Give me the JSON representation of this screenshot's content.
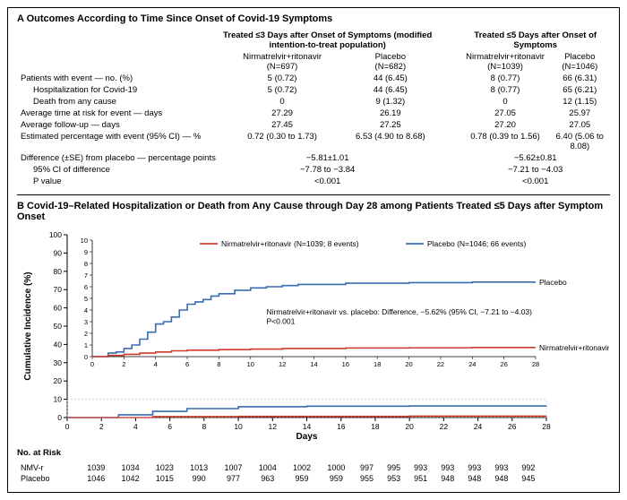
{
  "panelA": {
    "title": "A  Outcomes According to Time Since Onset of Covid-19 Symptoms",
    "group3": {
      "header": "Treated ≤3 Days after Onset of Symptoms (modified intention-to-treat population)",
      "nmvHead": "Nirmatrelvir+ritonavir",
      "nmvN": "(N=697)",
      "pboHead": "Placebo",
      "pboN": "(N=682)"
    },
    "group5": {
      "header": "Treated ≤5 Days after Onset of Symptoms",
      "nmvHead": "Nirmatrelvir+ritonavir",
      "nmvN": "(N=1039)",
      "pboHead": "Placebo",
      "pboN": "(N=1046)"
    },
    "rows": [
      {
        "label": "Patients with event — no. (%)",
        "a": "5 (0.72)",
        "b": "44 (6.45)",
        "c": "8 (0.77)",
        "d": "66 (6.31)"
      },
      {
        "label": "  Hospitalization for Covid-19",
        "a": "5 (0.72)",
        "b": "44 (6.45)",
        "c": "8 (0.77)",
        "d": "65 (6.21)"
      },
      {
        "label": "  Death from any cause",
        "a": "0",
        "b": "9 (1.32)",
        "c": "0",
        "d": "12 (1.15)"
      },
      {
        "label": "Average time at risk for event — days",
        "a": "27.29",
        "b": "26.19",
        "c": "27.05",
        "d": "25.97"
      },
      {
        "label": "Average follow-up — days",
        "a": "27.45",
        "b": "27.25",
        "c": "27.20",
        "d": "27.05"
      },
      {
        "label": "Estimated percentage with event (95% CI) — %",
        "a": "0.72 (0.30 to 1.73)",
        "b": "6.53 (4.90 to 8.68)",
        "c": "0.78 (0.39 to 1.56)",
        "d": "6.40 (5.06 to 8.08)"
      },
      {
        "label": "Difference (±SE) from placebo — percentage points",
        "a": "",
        "b": "",
        "c": "",
        "d": "",
        "diff3": "−5.81±1.01",
        "diff5": "−5.62±0.81"
      },
      {
        "label": "  95% CI of difference",
        "a": "",
        "b": "",
        "c": "",
        "d": "",
        "diff3": "−7.78 to −3.84",
        "diff5": "−7.21 to −4.03"
      },
      {
        "label": "  P value",
        "a": "",
        "b": "",
        "c": "",
        "d": "",
        "diff3": "<0.001",
        "diff5": "<0.001"
      }
    ]
  },
  "panelB": {
    "title": "B  Covid-19–Related Hospitalization or Death from Any Cause through Day 28 among Patients Treated ≤5 Days after Symptom Onset",
    "type": "kaplan-meier step",
    "ylabel": "Cumulative Incidence (%)",
    "xlabel": "Days",
    "xlim": [
      0,
      28
    ],
    "xticks": [
      0,
      2,
      4,
      6,
      8,
      10,
      12,
      14,
      16,
      18,
      20,
      22,
      24,
      26,
      28
    ],
    "ylim_outer": [
      0,
      100
    ],
    "yticks_outer": [
      0,
      10,
      20,
      30,
      40,
      50,
      60,
      70,
      80,
      90,
      100
    ],
    "ylim_inset": [
      0,
      10
    ],
    "yticks_inset": [
      0,
      1,
      2,
      3,
      4,
      5,
      6,
      7,
      8,
      9,
      10
    ],
    "colors": {
      "nmv": "#d13b2e",
      "pbo": "#3a6db0",
      "axis": "#000000",
      "grid": "#bfbfbf"
    },
    "line_width": 1.6,
    "legend": {
      "nmv": "Nirmatrelvir+ritonavir (N=1039; 8 events)",
      "pbo": "Placebo (N=1046; 66 events)"
    },
    "annotation": {
      "line1": "Nirmatrelvir+ritonavir vs. placebo: Difference, −5.62% (95% CI, −7.21 to −4.03)",
      "line2": "P<0.001"
    },
    "end_labels": {
      "pbo": "Placebo",
      "nmv": "Nirmatrelvir+ritonavir"
    },
    "series_inset": {
      "pbo": [
        [
          0,
          0
        ],
        [
          1,
          0.3
        ],
        [
          1.5,
          0.4
        ],
        [
          2,
          0.7
        ],
        [
          2.5,
          1.0
        ],
        [
          3,
          1.5
        ],
        [
          3.5,
          2.1
        ],
        [
          4,
          2.8
        ],
        [
          4.5,
          3.0
        ],
        [
          5,
          3.4
        ],
        [
          5.5,
          4.0
        ],
        [
          6,
          4.5
        ],
        [
          6.5,
          4.7
        ],
        [
          7,
          4.9
        ],
        [
          7.5,
          5.2
        ],
        [
          8,
          5.4
        ],
        [
          9,
          5.7
        ],
        [
          10,
          5.9
        ],
        [
          11,
          6.0
        ],
        [
          12,
          6.1
        ],
        [
          13,
          6.2
        ],
        [
          14,
          6.2
        ],
        [
          16,
          6.3
        ],
        [
          20,
          6.35
        ],
        [
          24,
          6.4
        ],
        [
          28,
          6.4
        ]
      ],
      "nmv": [
        [
          0,
          0
        ],
        [
          1,
          0.1
        ],
        [
          2,
          0.2
        ],
        [
          3,
          0.3
        ],
        [
          4,
          0.4
        ],
        [
          5,
          0.5
        ],
        [
          6,
          0.55
        ],
        [
          8,
          0.6
        ],
        [
          10,
          0.65
        ],
        [
          12,
          0.7
        ],
        [
          16,
          0.74
        ],
        [
          20,
          0.76
        ],
        [
          24,
          0.78
        ],
        [
          28,
          0.78
        ]
      ]
    },
    "series_outer": {
      "pbo": [
        [
          0,
          0
        ],
        [
          3,
          1.5
        ],
        [
          5,
          3.4
        ],
        [
          7,
          4.9
        ],
        [
          10,
          5.9
        ],
        [
          14,
          6.2
        ],
        [
          20,
          6.35
        ],
        [
          28,
          6.4
        ]
      ],
      "nmv": [
        [
          0,
          0
        ],
        [
          5,
          0.5
        ],
        [
          10,
          0.65
        ],
        [
          20,
          0.76
        ],
        [
          28,
          0.78
        ]
      ]
    },
    "risk": {
      "title": "No. at Risk",
      "days": [
        0,
        2,
        4,
        6,
        8,
        10,
        12,
        14,
        16,
        18,
        20,
        22,
        24,
        26,
        28
      ],
      "nmv_label": "NMV-r",
      "pbo_label": "Placebo",
      "nmv": [
        1039,
        1034,
        1023,
        1013,
        1007,
        1004,
        1002,
        1000,
        997,
        995,
        993,
        993,
        993,
        993,
        992
      ],
      "pbo": [
        1046,
        1042,
        1015,
        990,
        977,
        963,
        959,
        959,
        955,
        953,
        951,
        948,
        948,
        948,
        945
      ]
    }
  }
}
